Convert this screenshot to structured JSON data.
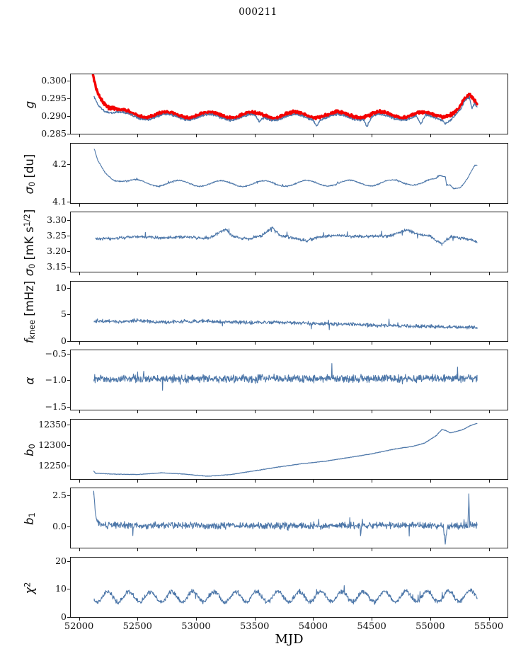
{
  "chart_data": {
    "type": "line",
    "title": "000211",
    "xlabel": "MJD",
    "xlim": [
      51930,
      55660
    ],
    "grid": false,
    "legend": "none",
    "colors": {
      "blue": "#4d77a9",
      "red": "#f40202",
      "axis": "#1a1a1a"
    },
    "xticks": {
      "values": [
        52000,
        52500,
        53000,
        53500,
        54000,
        54500,
        55000,
        55500
      ],
      "labels": [
        "52000",
        "52500",
        "53000",
        "53500",
        "54000",
        "54500",
        "55000",
        "55500"
      ]
    },
    "panels": [
      {
        "id": "g",
        "ylabel_segments": [
          {
            "t": "g",
            "s": "i"
          }
        ],
        "ylim": [
          0.285,
          0.3017
        ],
        "yticks": {
          "values": [
            0.285,
            0.29,
            0.295,
            0.3
          ],
          "labels": [
            "0.285",
            "0.290",
            "0.295",
            "0.300"
          ]
        },
        "series": [
          {
            "name": "g-red",
            "color": "#f40202",
            "width": 3.4,
            "noise": 0.00055,
            "spike": 0,
            "wave": {
              "period": 365,
              "amplitude": 0.0008,
              "peak_x": 52750
            },
            "anchors": [
              [
                52120,
                0.3013
              ],
              [
                52150,
                0.2978
              ],
              [
                52200,
                0.2948
              ],
              [
                52260,
                0.2927
              ],
              [
                52340,
                0.2913
              ],
              [
                52430,
                0.2906
              ],
              [
                52600,
                0.2903
              ],
              [
                53500,
                0.2902
              ],
              [
                54500,
                0.2903
              ],
              [
                55000,
                0.2903
              ],
              [
                55150,
                0.2906
              ],
              [
                55240,
                0.2915
              ],
              [
                55290,
                0.2938
              ],
              [
                55340,
                0.2952
              ],
              [
                55370,
                0.2944
              ],
              [
                55400,
                0.2934
              ]
            ]
          },
          {
            "name": "g-blue",
            "color": "#4d77a9",
            "width": 1.3,
            "noise": 0.00038,
            "spike": 0,
            "wave": {
              "period": 365,
              "amplitude": 0.0008,
              "peak_x": 52750
            },
            "anchors": [
              [
                52128,
                0.2957
              ],
              [
                52160,
                0.2938
              ],
              [
                52220,
                0.292
              ],
              [
                52300,
                0.2908
              ],
              [
                52400,
                0.29
              ],
              [
                52600,
                0.2897
              ],
              [
                53500,
                0.2896
              ],
              [
                53540,
                0.288
              ],
              [
                53580,
                0.2896
              ],
              [
                54000,
                0.2896
              ],
              [
                54030,
                0.2879
              ],
              [
                54060,
                0.2896
              ],
              [
                54430,
                0.2896
              ],
              [
                54460,
                0.2873
              ],
              [
                54500,
                0.2896
              ],
              [
                54880,
                0.2896
              ],
              [
                54920,
                0.2869
              ],
              [
                54960,
                0.2896
              ],
              [
                55100,
                0.2896
              ],
              [
                55130,
                0.2886
              ],
              [
                55200,
                0.29
              ],
              [
                55260,
                0.2913
              ],
              [
                55300,
                0.2937
              ],
              [
                55335,
                0.2945
              ],
              [
                55355,
                0.2917
              ],
              [
                55380,
                0.2932
              ],
              [
                55400,
                0.2926
              ]
            ]
          }
        ]
      },
      {
        "id": "sigma0-du",
        "ylabel_segments": [
          {
            "t": "σ",
            "s": "i"
          },
          {
            "t": "0",
            "s": "sb"
          },
          {
            "t": " [du]",
            "s": "n"
          }
        ],
        "ylim": [
          4.098,
          4.254
        ],
        "yticks": {
          "values": [
            4.1,
            4.2
          ],
          "labels": [
            "4.1",
            "4.2"
          ]
        },
        "series": [
          {
            "name": "sigma0-du",
            "color": "#4d77a9",
            "width": 1.1,
            "noise": 0.002,
            "spike": 0.004,
            "wave": {
              "period": 365,
              "amplitude": 0.0075,
              "peak_x": 52850
            },
            "anchors": [
              [
                52130,
                4.232
              ],
              [
                52160,
                4.205
              ],
              [
                52220,
                4.18
              ],
              [
                52300,
                4.165
              ],
              [
                52420,
                4.153
              ],
              [
                52700,
                4.15
              ],
              [
                53500,
                4.149
              ],
              [
                54500,
                4.151
              ],
              [
                54800,
                4.152
              ],
              [
                55050,
                4.155
              ],
              [
                55080,
                4.165
              ],
              [
                55130,
                4.166
              ],
              [
                55140,
                4.146
              ],
              [
                55170,
                4.151
              ],
              [
                55200,
                4.143
              ],
              [
                55260,
                4.145
              ],
              [
                55320,
                4.163
              ],
              [
                55380,
                4.19
              ],
              [
                55400,
                4.191
              ]
            ]
          }
        ]
      },
      {
        "id": "sigma0-mks",
        "ylabel_segments": [
          {
            "t": "σ",
            "s": "i"
          },
          {
            "t": "0",
            "s": "sb"
          },
          {
            "t": " [mK s",
            "s": "n"
          },
          {
            "t": "1/2",
            "s": "sp"
          },
          {
            "t": "]",
            "s": "n"
          }
        ],
        "ylim": [
          3.133,
          3.325
        ],
        "yticks": {
          "values": [
            3.15,
            3.2,
            3.25,
            3.3
          ],
          "labels": [
            "3.15",
            "3.20",
            "3.25",
            "3.30"
          ]
        },
        "series": [
          {
            "name": "sigma0-mks",
            "color": "#4d77a9",
            "width": 1.1,
            "noise": 0.006,
            "spike": 0.015,
            "anchors": [
              [
                52140,
                3.24
              ],
              [
                52300,
                3.24
              ],
              [
                52500,
                3.247
              ],
              [
                52700,
                3.242
              ],
              [
                52900,
                3.246
              ],
              [
                53100,
                3.24
              ],
              [
                53250,
                3.27
              ],
              [
                53320,
                3.246
              ],
              [
                53450,
                3.238
              ],
              [
                53560,
                3.25
              ],
              [
                53650,
                3.276
              ],
              [
                53720,
                3.25
              ],
              [
                53850,
                3.24
              ],
              [
                53950,
                3.234
              ],
              [
                54050,
                3.246
              ],
              [
                54200,
                3.25
              ],
              [
                54350,
                3.247
              ],
              [
                54500,
                3.248
              ],
              [
                54650,
                3.248
              ],
              [
                54800,
                3.268
              ],
              [
                54900,
                3.254
              ],
              [
                55000,
                3.248
              ],
              [
                55100,
                3.222
              ],
              [
                55180,
                3.248
              ],
              [
                55280,
                3.24
              ],
              [
                55340,
                3.238
              ],
              [
                55400,
                3.228
              ]
            ]
          }
        ]
      },
      {
        "id": "fknee",
        "ylabel_segments": [
          {
            "t": "f",
            "s": "i"
          },
          {
            "t": "knee",
            "s": "sb"
          },
          {
            "t": " [mHz]",
            "s": "n"
          }
        ],
        "ylim": [
          0,
          11.2
        ],
        "yticks": {
          "values": [
            0,
            5,
            10
          ],
          "labels": [
            "0",
            "5",
            "10"
          ]
        },
        "series": [
          {
            "name": "fknee",
            "color": "#4d77a9",
            "width": 1.1,
            "noise": 0.42,
            "spike": 1.1,
            "anchors": [
              [
                52130,
                3.8
              ],
              [
                52350,
                3.6
              ],
              [
                52500,
                3.9
              ],
              [
                52650,
                3.5
              ],
              [
                52900,
                3.7
              ],
              [
                53100,
                3.75
              ],
              [
                53300,
                3.55
              ],
              [
                53500,
                3.5
              ],
              [
                53700,
                3.55
              ],
              [
                53900,
                3.4
              ],
              [
                54100,
                3.25
              ],
              [
                54300,
                3.15
              ],
              [
                54500,
                3.0
              ],
              [
                54700,
                2.9
              ],
              [
                54900,
                2.8
              ],
              [
                55100,
                2.7
              ],
              [
                55300,
                2.6
              ],
              [
                55400,
                2.6
              ]
            ]
          }
        ]
      },
      {
        "id": "alpha",
        "ylabel_segments": [
          {
            "t": "α",
            "s": "i"
          }
        ],
        "ylim": [
          -1.56,
          -0.44
        ],
        "yticks": {
          "values": [
            -0.5,
            -1.0,
            -1.5
          ],
          "labels": [
            "−0.5",
            "−1.0",
            "−1.5"
          ]
        },
        "series": [
          {
            "name": "alpha",
            "color": "#4d77a9",
            "width": 1.1,
            "noise": 0.09,
            "spike": 0.27,
            "anchors": [
              [
                52128,
                -0.98
              ],
              [
                53500,
                -0.975
              ],
              [
                54500,
                -0.975
              ],
              [
                55400,
                -0.97
              ]
            ]
          }
        ]
      },
      {
        "id": "b0",
        "ylabel_segments": [
          {
            "t": "b",
            "s": "i"
          },
          {
            "t": "0",
            "s": "sb"
          }
        ],
        "ylim": [
          12218,
          12362
        ],
        "yticks": {
          "values": [
            12250,
            12300,
            12350
          ],
          "labels": [
            "12250",
            "12300",
            "12350"
          ]
        },
        "series": [
          {
            "name": "b0",
            "color": "#4d77a9",
            "width": 1.2,
            "noise": 0.8,
            "spike": 0,
            "anchors": [
              [
                52125,
                12238
              ],
              [
                52140,
                12232
              ],
              [
                52300,
                12230
              ],
              [
                52500,
                12229
              ],
              [
                52700,
                12233
              ],
              [
                52900,
                12230
              ],
              [
                53100,
                12225
              ],
              [
                53300,
                12229
              ],
              [
                53500,
                12238
              ],
              [
                53700,
                12247
              ],
              [
                53900,
                12255
              ],
              [
                54100,
                12261
              ],
              [
                54300,
                12270
              ],
              [
                54500,
                12279
              ],
              [
                54700,
                12291
              ],
              [
                54850,
                12297
              ],
              [
                54950,
                12305
              ],
              [
                55050,
                12323
              ],
              [
                55100,
                12338
              ],
              [
                55130,
                12336
              ],
              [
                55170,
                12330
              ],
              [
                55220,
                12333
              ],
              [
                55280,
                12338
              ],
              [
                55340,
                12347
              ],
              [
                55400,
                12353
              ]
            ]
          }
        ]
      },
      {
        "id": "b1",
        "ylabel_segments": [
          {
            "t": "b",
            "s": "i"
          },
          {
            "t": "1",
            "s": "sb"
          }
        ],
        "ylim": [
          -1.75,
          3.1
        ],
        "yticks": {
          "values": [
            0.0,
            2.5
          ],
          "labels": [
            "0.0",
            "2.5"
          ]
        },
        "series": [
          {
            "name": "b1",
            "color": "#4d77a9",
            "width": 1.1,
            "noise": 0.33,
            "spike": 0.95,
            "anchors": [
              [
                52126,
                2.8
              ],
              [
                52136,
                1.6
              ],
              [
                52148,
                0.7
              ],
              [
                52168,
                0.25
              ],
              [
                52210,
                0.08
              ],
              [
                53000,
                0.05
              ],
              [
                54000,
                0.05
              ],
              [
                55000,
                0.08
              ],
              [
                55110,
                0.05
              ],
              [
                55128,
                -1.45
              ],
              [
                55146,
                0.0
              ],
              [
                55250,
                0.05
              ],
              [
                55322,
                0.1
              ],
              [
                55330,
                2.55
              ],
              [
                55338,
                0.1
              ],
              [
                55400,
                0.1
              ]
            ]
          }
        ]
      },
      {
        "id": "chi2",
        "ylabel_segments": [
          {
            "t": "χ",
            "s": "i"
          },
          {
            "t": "2",
            "s": "sp"
          }
        ],
        "ylim": [
          0,
          21.5
        ],
        "yticks": {
          "values": [
            0,
            10,
            20
          ],
          "labels": [
            "0",
            "10",
            "20"
          ]
        },
        "series": [
          {
            "name": "chi2",
            "color": "#4d77a9",
            "width": 1.1,
            "noise": 1.0,
            "spike": 2.5,
            "wave": {
              "period": 182,
              "amplitude": 1.9,
              "peak_x": 52245
            },
            "anchors": [
              [
                52130,
                7.3
              ],
              [
                53000,
                7.3
              ],
              [
                54000,
                7.4
              ],
              [
                54800,
                7.4
              ],
              [
                55300,
                7.6
              ],
              [
                55400,
                8.2
              ]
            ]
          }
        ]
      }
    ]
  }
}
